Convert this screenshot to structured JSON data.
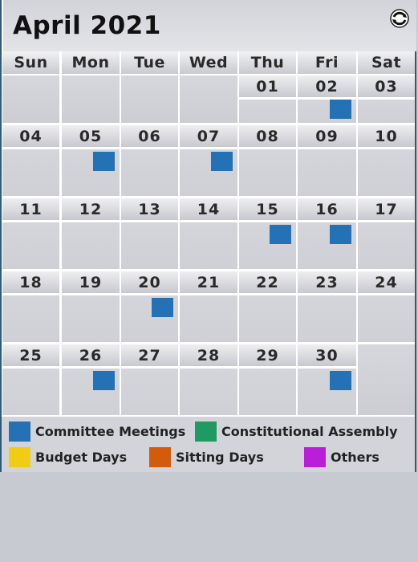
{
  "calendar": {
    "title": "April 2021",
    "refresh_icon": "refresh-icon",
    "weekdays": [
      "Sun",
      "Mon",
      "Tue",
      "Wed",
      "Thu",
      "Fri",
      "Sat"
    ],
    "weeks": [
      [
        {
          "date": ""
        },
        {
          "date": ""
        },
        {
          "date": ""
        },
        {
          "date": ""
        },
        {
          "date": "01"
        },
        {
          "date": "02",
          "event": "committee"
        },
        {
          "date": "03"
        }
      ],
      [
        {
          "date": "04"
        },
        {
          "date": "05",
          "event": "committee"
        },
        {
          "date": "06"
        },
        {
          "date": "07",
          "event": "committee"
        },
        {
          "date": "08"
        },
        {
          "date": "09"
        },
        {
          "date": "10"
        }
      ],
      [
        {
          "date": "11"
        },
        {
          "date": "12"
        },
        {
          "date": "13"
        },
        {
          "date": "14"
        },
        {
          "date": "15",
          "event": "committee"
        },
        {
          "date": "16",
          "event": "committee"
        },
        {
          "date": "17"
        }
      ],
      [
        {
          "date": "18"
        },
        {
          "date": "19"
        },
        {
          "date": "20",
          "event": "committee"
        },
        {
          "date": "21"
        },
        {
          "date": "22"
        },
        {
          "date": "23"
        },
        {
          "date": "24"
        }
      ],
      [
        {
          "date": "25"
        },
        {
          "date": "26",
          "event": "committee"
        },
        {
          "date": "27"
        },
        {
          "date": "28"
        },
        {
          "date": "29"
        },
        {
          "date": "30",
          "event": "committee"
        },
        {
          "date": ""
        }
      ]
    ]
  },
  "legend": [
    {
      "key": "committee",
      "label": "Committee Meetings",
      "color": "#2571b5"
    },
    {
      "key": "constitutional",
      "label": "Constitutional Assembly",
      "color": "#1f9a63"
    },
    {
      "key": "budget",
      "label": "Budget Days",
      "color": "#f0cc14"
    },
    {
      "key": "sitting",
      "label": "Sitting Days",
      "color": "#d35c0c"
    },
    {
      "key": "others",
      "label": "Others",
      "color": "#b91fd9"
    }
  ]
}
